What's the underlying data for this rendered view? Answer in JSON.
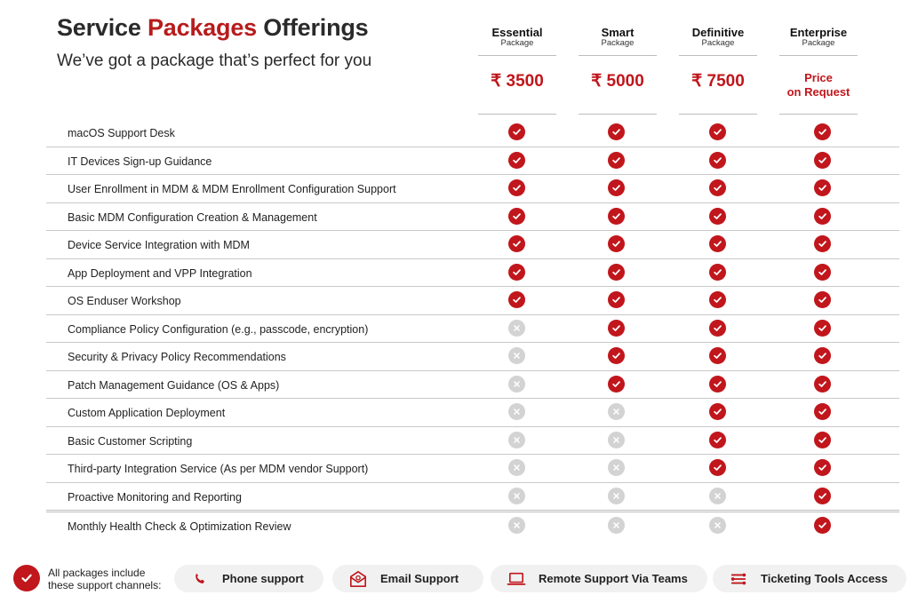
{
  "header": {
    "title_part1": "Service ",
    "title_accent": "Packages",
    "title_part2": " Offerings",
    "subtitle": "We’ve got a package that’s perfect for you"
  },
  "packages": [
    {
      "name": "Essential",
      "sub": "Package",
      "price": "₹ 3500"
    },
    {
      "name": "Smart",
      "sub": "Package",
      "price": "₹ 5000"
    },
    {
      "name": "Definitive",
      "sub": "Package",
      "price": "₹ 7500"
    },
    {
      "name": "Enterprise",
      "sub": "Package",
      "price_line1": "Price",
      "price_line2": "on Request"
    }
  ],
  "features": [
    {
      "label": "macOS Support Desk",
      "included": [
        true,
        true,
        true,
        true
      ]
    },
    {
      "label": "IT Devices Sign-up Guidance",
      "included": [
        true,
        true,
        true,
        true
      ]
    },
    {
      "label": "User Enrollment in MDM & MDM Enrollment Configuration Support",
      "included": [
        true,
        true,
        true,
        true
      ]
    },
    {
      "label": "Basic MDM Configuration Creation & Management",
      "included": [
        true,
        true,
        true,
        true
      ]
    },
    {
      "label": "Device Service Integration with MDM",
      "included": [
        true,
        true,
        true,
        true
      ]
    },
    {
      "label": "App Deployment and VPP Integration",
      "included": [
        true,
        true,
        true,
        true
      ]
    },
    {
      "label": "OS Enduser Workshop",
      "included": [
        true,
        true,
        true,
        true
      ]
    },
    {
      "label": "Compliance Policy Configuration (e.g., passcode, encryption)",
      "included": [
        false,
        true,
        true,
        true
      ]
    },
    {
      "label": "Security & Privacy Policy Recommendations",
      "included": [
        false,
        true,
        true,
        true
      ]
    },
    {
      "label": "Patch Management Guidance (OS & Apps)",
      "included": [
        false,
        true,
        true,
        true
      ]
    },
    {
      "label": "Custom Application Deployment",
      "included": [
        false,
        false,
        true,
        true
      ]
    },
    {
      "label": "Basic Customer Scripting",
      "included": [
        false,
        false,
        true,
        true
      ]
    },
    {
      "label": "Third-party Integration Service (As per MDM vendor Support)",
      "included": [
        false,
        false,
        true,
        true
      ]
    },
    {
      "label": "Proactive Monitoring and Reporting",
      "included": [
        false,
        false,
        false,
        true
      ]
    },
    {
      "label": "Monthly Health Check & Optimization Review",
      "included": [
        false,
        false,
        false,
        true
      ]
    }
  ],
  "footer": {
    "note_line1": "All packages include",
    "note_line2": "these support channels:",
    "channels": [
      {
        "label": "Phone support",
        "icon": "phone-icon"
      },
      {
        "label": "Email Support",
        "icon": "email-icon"
      },
      {
        "label": "Remote Support Via Teams",
        "icon": "laptop-icon"
      },
      {
        "label": "Ticketing Tools Access",
        "icon": "ticketing-icon"
      }
    ]
  },
  "colors": {
    "accent": "#c0161c",
    "excluded": "#d3d3d3",
    "pill_bg": "#f1f1f1"
  }
}
